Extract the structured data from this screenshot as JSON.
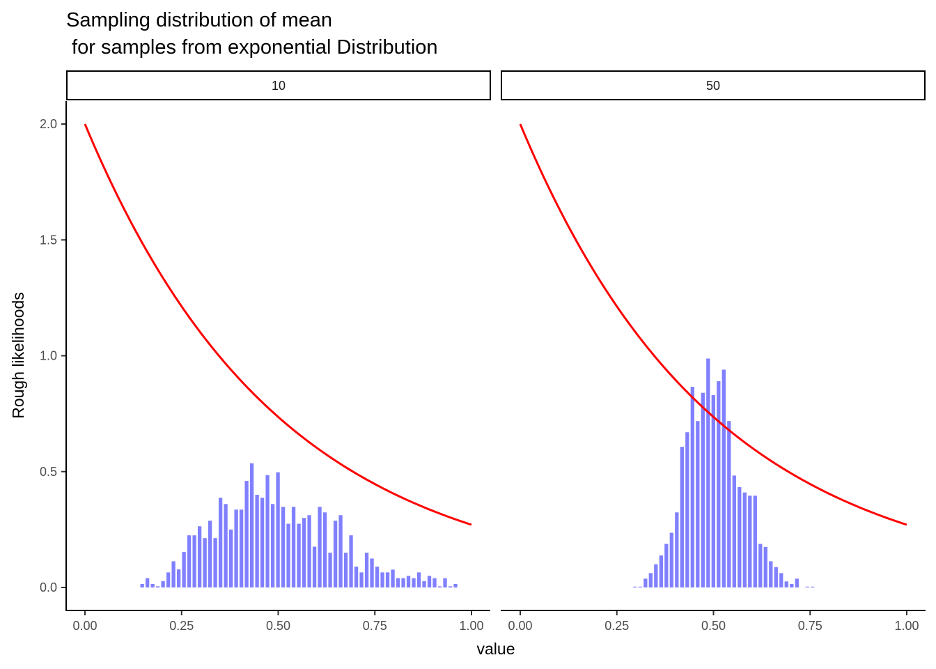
{
  "chart_data": {
    "type": "bar",
    "title_line1": "Sampling distribution of mean",
    "title_line2": " for samples from exponential Distribution",
    "xlabel": "value",
    "ylabel": "Rough likelihoods",
    "xlim": [
      -0.05,
      1.05
    ],
    "ylim": [
      -0.1,
      2.1
    ],
    "x_ticks": [
      0,
      0.25,
      0.5,
      0.75,
      1.0
    ],
    "x_tick_labels": [
      "0.00",
      "0.25",
      "0.50",
      "0.75",
      "1.00"
    ],
    "y_ticks": [
      0,
      0.5,
      1.0,
      1.5,
      2.0
    ],
    "y_tick_labels": [
      "0.0",
      "0.5",
      "1.0",
      "1.5",
      "2.0"
    ],
    "grid": false,
    "bar_color": "#8080ff",
    "curve_color": "#ff0000",
    "curve": {
      "name": "exponential density",
      "formula": "2*exp(-2x)",
      "rate": 2,
      "x_range": [
        0,
        1
      ]
    },
    "bin_width": 0.01351,
    "panels": [
      {
        "label": "10",
        "bins_start": 0.148,
        "values": [
          0.015,
          0.04,
          0.015,
          0.005,
          0.027,
          0.065,
          0.113,
          0.078,
          0.153,
          0.225,
          0.225,
          0.264,
          0.213,
          0.288,
          0.213,
          0.387,
          0.36,
          0.25,
          0.336,
          0.336,
          0.46,
          0.536,
          0.4,
          0.387,
          0.485,
          0.36,
          0.497,
          0.348,
          0.275,
          0.348,
          0.275,
          0.3,
          0.312,
          0.176,
          0.348,
          0.324,
          0.15,
          0.288,
          0.312,
          0.15,
          0.225,
          0.09,
          0.065,
          0.15,
          0.125,
          0.09,
          0.065,
          0.065,
          0.077,
          0.04,
          0.04,
          0.05,
          0.04,
          0.065,
          0.027,
          0.05,
          0.04,
          0.005,
          0.04,
          0.005,
          0.015
        ]
      },
      {
        "label": "50",
        "bins_start": 0.297,
        "values": [
          0.003,
          0.003,
          0.038,
          0.062,
          0.1,
          0.138,
          0.188,
          0.236,
          0.324,
          0.607,
          0.67,
          0.866,
          0.718,
          0.84,
          0.988,
          0.83,
          0.89,
          0.94,
          0.718,
          0.483,
          0.433,
          0.41,
          0.396,
          0.396,
          0.188,
          0.175,
          0.113,
          0.088,
          0.062,
          0.026,
          0.015,
          0.038,
          0,
          0.003,
          0.003
        ]
      }
    ]
  }
}
